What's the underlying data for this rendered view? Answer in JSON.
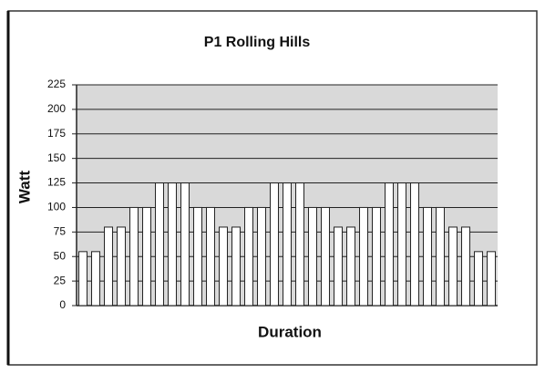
{
  "chart_data": {
    "type": "bar",
    "title": "P1 Rolling Hills",
    "x_label": "Duration",
    "y_label": "Watt",
    "categories": [
      null,
      null,
      null,
      null,
      null,
      null,
      null,
      null,
      null,
      null,
      null,
      null,
      null,
      null,
      null,
      null,
      null,
      null,
      null,
      null,
      null,
      null,
      null,
      null,
      null,
      null,
      null,
      null,
      null,
      null,
      null,
      null,
      null
    ],
    "values": [
      55,
      55,
      80,
      80,
      100,
      100,
      125,
      125,
      125,
      100,
      100,
      80,
      80,
      100,
      100,
      125,
      125,
      125,
      100,
      100,
      80,
      80,
      100,
      100,
      125,
      125,
      125,
      100,
      100,
      80,
      80,
      55,
      55
    ],
    "color": "#ffffff",
    "ylim": [
      0,
      225
    ],
    "yticks": [
      0,
      25,
      50,
      75,
      100,
      125,
      150,
      175,
      200,
      225
    ],
    "grid": true
  }
}
